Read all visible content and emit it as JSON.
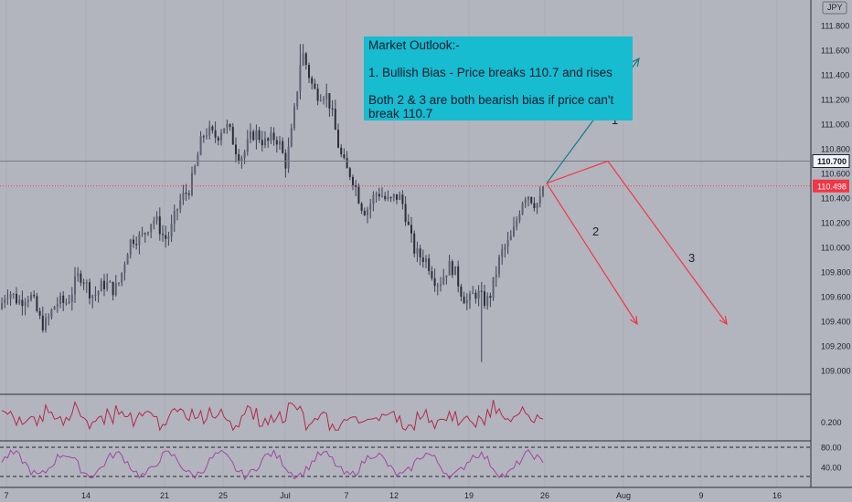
{
  "currency": "JPY",
  "chart_data": {
    "type": "candlestick",
    "ylim": [
      108.85,
      111.95
    ],
    "price_ticks": [
      "111.800",
      "111.600",
      "111.400",
      "111.200",
      "111.000",
      "110.800",
      "110.600",
      "110.400",
      "110.200",
      "110.000",
      "109.800",
      "109.600",
      "109.400",
      "109.200",
      "109.000"
    ],
    "x_tick_labels": [
      "7",
      "14",
      "21",
      "25",
      "Jul",
      "7",
      "12",
      "19",
      "26",
      "Aug",
      "9",
      "16"
    ],
    "horizontal_line": {
      "value": 110.7,
      "label": "110.700",
      "color": "#787b86"
    },
    "last_price": {
      "value": 110.498,
      "label": "110.498",
      "color": "#f23645"
    },
    "anchors": [
      {
        "label": "7",
        "price": 109.5
      },
      {
        "label": "14",
        "price": 109.6
      },
      {
        "label": "21",
        "price": 110.2
      },
      {
        "label": "25",
        "price": 111.0
      },
      {
        "label": "Jul",
        "price": 110.7
      },
      {
        "label": "Jul 3",
        "price": 111.65
      },
      {
        "label": "7",
        "price": 110.6
      },
      {
        "label": "12",
        "price": 110.3
      },
      {
        "label": "19",
        "price": 109.5
      },
      {
        "label": "26",
        "price": 110.52
      }
    ],
    "key_points": {
      "high": 111.65,
      "low": 109.07,
      "late_june_high": 110.95
    },
    "indicator_1": {
      "tick_label": "0.200",
      "color": "#b2284a"
    },
    "indicator_2": {
      "tick_labels": [
        "80.00",
        "40.00"
      ],
      "color": "#a2469f"
    },
    "projections": [
      {
        "label": "1",
        "color": "#117b82",
        "from": {
          "date": "26",
          "price": 110.52
        },
        "to": {
          "date": "Aug",
          "price": 111.5
        }
      },
      {
        "label": "2",
        "color": "#f23645",
        "from": {
          "date": "26",
          "price": 110.52
        },
        "to": {
          "date": "Aug",
          "price": 109.4
        }
      },
      {
        "label": "3",
        "color": "#f23645",
        "via": {
          "date": "29",
          "price": 110.7
        },
        "to": {
          "date": "9",
          "price": 109.4
        }
      }
    ]
  },
  "annotation": {
    "title": "Market Outlook:-",
    "line1": "1. Bullish Bias - Price breaks 110.7 and rises",
    "line2": "Both 2 & 3 are both bearish bias if price can't break 110.7"
  }
}
